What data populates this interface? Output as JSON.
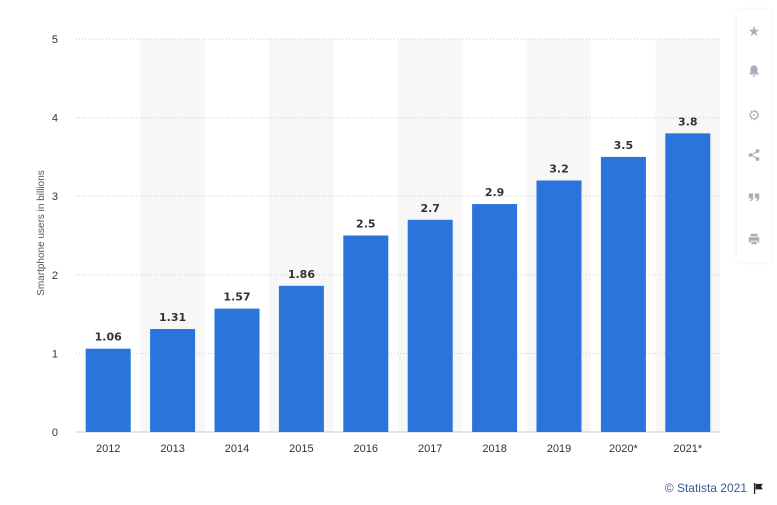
{
  "chart_data": {
    "type": "bar",
    "categories": [
      "2012",
      "2013",
      "2014",
      "2015",
      "2016",
      "2017",
      "2018",
      "2019",
      "2020*",
      "2021*"
    ],
    "values": [
      1.06,
      1.31,
      1.57,
      1.86,
      2.5,
      2.7,
      2.9,
      3.2,
      3.5,
      3.8
    ],
    "value_labels": [
      "1.06",
      "1.31",
      "1.57",
      "1.86",
      "2.5",
      "2.7",
      "2.9",
      "3.2",
      "3.5",
      "3.8"
    ],
    "ylabel": "Smartphone users in billions",
    "ylim": [
      0,
      5
    ],
    "yticks": [
      0,
      1,
      2,
      3,
      4,
      5
    ],
    "grid": true,
    "bar_color": "#2a74dc",
    "band_color": "#f7f7f7",
    "grid_color": "#cccccc"
  },
  "toolbar": {
    "buttons": [
      {
        "name": "favorite-star-icon"
      },
      {
        "name": "notification-bell-icon"
      },
      {
        "name": "settings-gear-icon"
      },
      {
        "name": "share-icon"
      },
      {
        "name": "cite-quote-icon"
      },
      {
        "name": "print-icon"
      }
    ]
  },
  "credit": {
    "text": "© Statista 2021",
    "icon": "flag-icon"
  }
}
